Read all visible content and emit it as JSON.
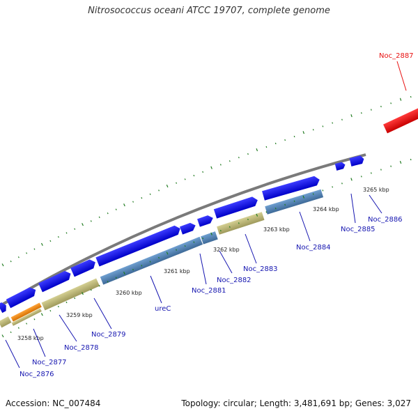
{
  "title": "Nitrosococcus oceani ATCC 19707, complete genome",
  "footer": {
    "accession": "Accession: NC_007484",
    "topology": "Topology: circular; Length: 3,481,691 bp; Genes: 3,027"
  },
  "ticks": [
    "3258 kbp",
    "3259 kbp",
    "3260 kbp",
    "3261 kbp",
    "3262 kbp",
    "3263 kbp",
    "3264 kbp",
    "3265 kbp"
  ],
  "genes": [
    {
      "name": "Noc_2876",
      "strand": "+",
      "rna_color": ""
    },
    {
      "name": "Noc_2877",
      "strand": "-",
      "rna_color": "#e8850f"
    },
    {
      "name": "Noc_2878",
      "strand": "-",
      "rna_color": ""
    },
    {
      "name": "Noc_2879",
      "strand": "-",
      "rna_color": ""
    },
    {
      "name": "ureC",
      "strand": "-",
      "rna_color": ""
    },
    {
      "name": "Noc_2881",
      "strand": "-",
      "rna_color": ""
    },
    {
      "name": "Noc_2882",
      "strand": "-",
      "rna_color": ""
    },
    {
      "name": "Noc_2883",
      "strand": "-",
      "rna_color": ""
    },
    {
      "name": "Noc_2884",
      "strand": "-",
      "rna_color": ""
    },
    {
      "name": "Noc_2885",
      "strand": "+",
      "rna_color": ""
    },
    {
      "name": "Noc_2886",
      "strand": "+",
      "rna_color": ""
    },
    {
      "name": "Noc_2887",
      "strand": "+",
      "rna_color": "#e81010"
    }
  ],
  "colors": {
    "backbone": "#808080",
    "forward_cds": "#1010ee",
    "reverse_cds": "#4f83b8",
    "reverse_alt": "#bdb878",
    "tick": "#1f7a1f",
    "label": "#1515b0",
    "highlight_label": "#e81010"
  }
}
